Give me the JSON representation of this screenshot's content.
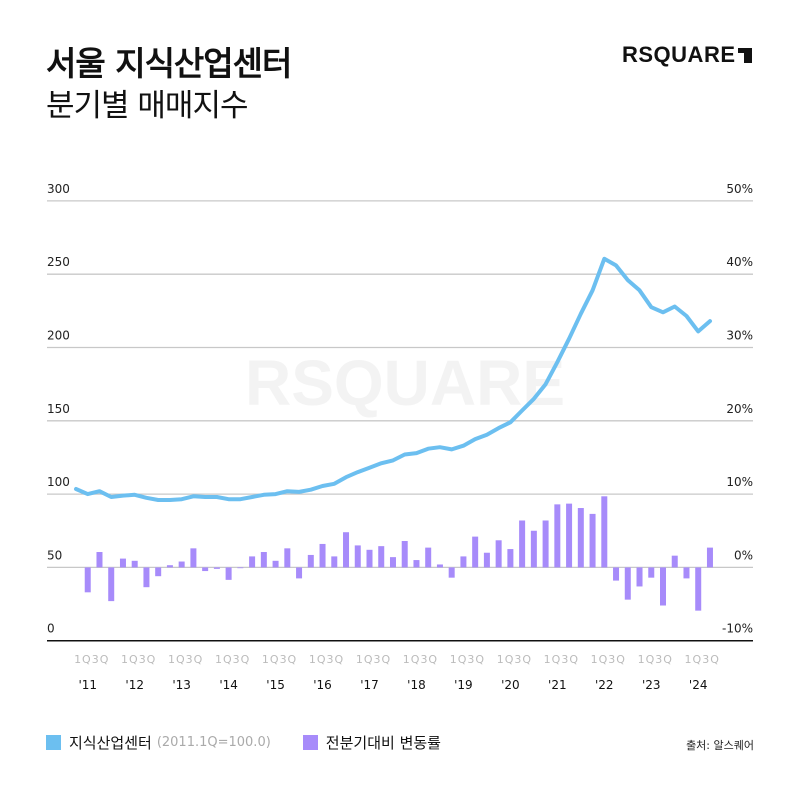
{
  "header": {
    "title": "서울 지식산업센터",
    "subtitle": "분기별 매매지수",
    "logo": "RSQUARE"
  },
  "watermark": "RSQUARE",
  "legend": [
    {
      "label": "지식산업센터",
      "note": "(2011.1Q=100.0)",
      "color": "#6cbff0"
    },
    {
      "label": "전분기대비 변동률",
      "note": "",
      "color": "#a78bfa"
    }
  ],
  "source": "출처: 알스퀘어",
  "chart_data": {
    "type": "bar+line",
    "quarter_tick_label": "1Q3Q",
    "years": [
      "'11",
      "'12",
      "'13",
      "'14",
      "'15",
      "'16",
      "'17",
      "'18",
      "'19",
      "'20",
      "'21",
      "'22",
      "'23",
      "'24"
    ],
    "x_start": "2011Q1",
    "x_end": "2024Q3",
    "left_axis": {
      "ylim": [
        0,
        300
      ],
      "ticks": [
        "0",
        "50",
        "100",
        "150",
        "200",
        "250",
        "300"
      ]
    },
    "right_axis": {
      "ylim": [
        -10,
        50
      ],
      "ticks": [
        "-10%",
        "0%",
        "10%",
        "20%",
        "30%",
        "40%",
        "50%"
      ]
    },
    "grid": true,
    "series": [
      {
        "name": "지식산업센터",
        "type": "line",
        "axis": "left",
        "values": [
          103.5,
          100,
          102,
          98,
          99,
          99.5,
          97.5,
          96,
          96,
          96.5,
          98.5,
          98,
          98,
          96.5,
          96.5,
          98,
          99.5,
          100,
          102,
          101.5,
          103,
          105.5,
          107,
          111.5,
          115,
          118,
          121,
          123,
          127,
          128,
          131,
          132,
          130.5,
          133,
          137.5,
          140.5,
          145,
          149,
          157,
          165,
          175,
          190,
          206,
          223,
          239,
          260.5,
          256,
          246,
          239,
          227.5,
          224,
          228,
          221.5,
          211,
          218
        ]
      },
      {
        "name": "전분기대비 변동률",
        "type": "bar",
        "axis": "right",
        "unit": "%",
        "values": [
          null,
          -3.4,
          2.1,
          -4.6,
          1.2,
          0.9,
          -2.7,
          -1.2,
          0.3,
          0.8,
          2.6,
          -0.5,
          -0.2,
          -1.7,
          0.0,
          1.5,
          2.1,
          0.9,
          2.6,
          -1.5,
          1.7,
          3.2,
          1.5,
          4.8,
          3.0,
          2.4,
          2.9,
          1.4,
          3.6,
          1.0,
          2.7,
          0.4,
          -1.4,
          1.5,
          4.2,
          2.0,
          3.7,
          2.5,
          6.4,
          5.0,
          6.4,
          8.6,
          8.7,
          8.1,
          7.3,
          9.7,
          -1.8,
          -4.4,
          -2.6,
          -1.4,
          -5.2,
          1.6,
          -1.5,
          -5.9,
          2.7
        ]
      }
    ]
  }
}
